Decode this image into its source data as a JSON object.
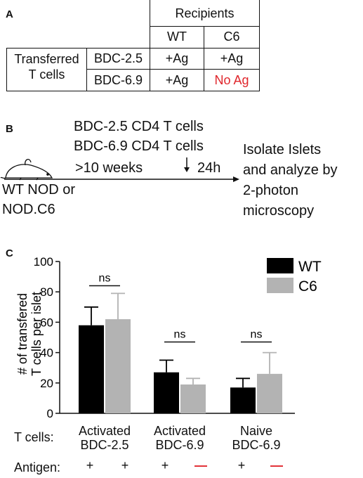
{
  "panel_a": {
    "letter": "A",
    "recipients_header": "Recipients",
    "col_wt": "WT",
    "col_c6": "C6",
    "row_header_line1": "Transferred",
    "row_header_line2": "T cells",
    "row1_label": "BDC-2.5",
    "row1_wt": "+Ag",
    "row1_c6": "+Ag",
    "row2_label": "BDC-6.9",
    "row2_wt": "+Ag",
    "row2_c6": "No Ag",
    "highlight_color": "#e0262c"
  },
  "panel_b": {
    "letter": "B",
    "line1": "BDC-2.5 CD4 T cells",
    "line2": "BDC-6.9 CD4 T cells",
    "weeks": ">10 weeks",
    "hours": "24h",
    "mouse_line1": "WT NOD or",
    "mouse_line2": "NOD.C6",
    "outcome_line1": "Isolate Islets",
    "outcome_line2": "and analyze by",
    "outcome_line3": "2-photon",
    "outcome_line4": "microscopy",
    "mouse_icon": "mouse-icon"
  },
  "panel_c": {
    "letter": "C",
    "tcells_label": "T cells:",
    "antigen_label": "Antigen:",
    "group1_line1": "Activated",
    "group1_line2": "BDC-2.5",
    "group2_line1": "Activated",
    "group2_line2": "BDC-6.9",
    "group3_line1": "Naive",
    "group3_line2": "BDC-6.9",
    "antigen_marks": [
      "+",
      "+",
      "+",
      "—",
      "+",
      "—"
    ],
    "antigen_colors": [
      "#111111",
      "#111111",
      "#111111",
      "#e0262c",
      "#111111",
      "#e0262c"
    ]
  },
  "chart_data": {
    "type": "bar",
    "ylabel_line1": "# of transfered",
    "ylabel_line2": "T cells per islet",
    "ylim": [
      0,
      100
    ],
    "yticks": [
      0,
      20,
      40,
      60,
      80,
      100
    ],
    "categories": [
      "Activated BDC-2.5",
      "Activated BDC-6.9",
      "Naive BDC-6.9"
    ],
    "series": [
      {
        "name": "WT",
        "color": "#000000",
        "values": [
          58,
          27,
          17
        ],
        "errors": [
          12,
          8,
          6
        ]
      },
      {
        "name": "C6",
        "color": "#b3b3b3",
        "values": [
          62,
          19,
          26
        ],
        "errors": [
          17,
          4,
          14
        ]
      }
    ],
    "significance": [
      "ns",
      "ns",
      "ns"
    ],
    "legend_position": "top-right",
    "grid": false
  }
}
